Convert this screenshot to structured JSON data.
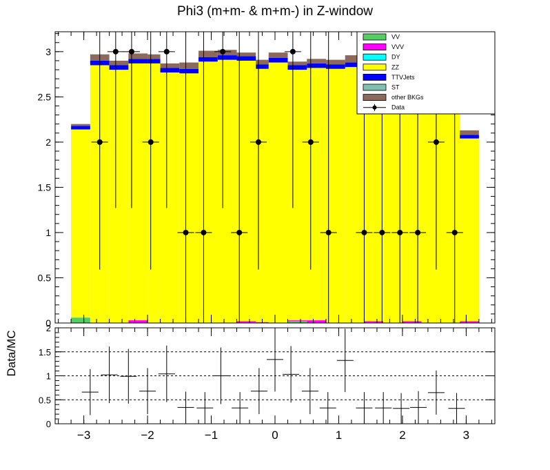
{
  "chart_data": {
    "type": "stacked-histogram-with-ratio",
    "title": "Phi3 (m+m- & m+m-) in Z-window",
    "xlabel": "",
    "ylabel": "",
    "ratio_ylabel": "Data/MC",
    "xlim": [
      -3.45,
      3.45
    ],
    "ylim": [
      0,
      3.22
    ],
    "ratio_ylim": [
      0,
      2
    ],
    "x_ticks": [
      -3,
      -2,
      -1,
      0,
      1,
      2,
      3
    ],
    "x_tick_labels": [
      "−3",
      "−2",
      "−1",
      "0",
      "1",
      "2",
      "3"
    ],
    "y_ticks": [
      0,
      0.5,
      1,
      1.5,
      2,
      2.5,
      3
    ],
    "y_tick_labels": [
      "0",
      "0.5",
      "1",
      "1.5",
      "2",
      "2.5",
      "3"
    ],
    "ratio_y_ticks": [
      0,
      0.5,
      1,
      1.5,
      2
    ],
    "ratio_y_tick_labels": [
      "0",
      "0.5",
      "1",
      "1.5",
      "2"
    ],
    "ratio_gridlines": [
      0.5,
      1,
      1.5
    ],
    "bin_edges": [
      -3.2,
      -2.9,
      -2.6,
      -2.3,
      -2.0,
      -1.8,
      -1.5,
      -1.2,
      -0.9,
      -0.6,
      -0.3,
      -0.1,
      0.2,
      0.5,
      0.8,
      1.1,
      1.4,
      1.7,
      2.0,
      2.3,
      2.6,
      2.9,
      3.2
    ],
    "series": [
      {
        "name": "VV",
        "color": "#55cc66",
        "values": [
          0.06,
          0,
          0,
          0,
          0,
          0,
          0,
          0,
          0,
          0,
          0,
          0,
          0.02,
          0,
          0,
          0,
          0,
          0,
          0,
          0,
          0,
          0
        ]
      },
      {
        "name": "VVV",
        "color": "#ff00ff",
        "values": [
          0,
          0,
          0,
          0.03,
          0,
          0,
          0,
          0,
          0,
          0.02,
          0.01,
          0,
          0.01,
          0.03,
          0,
          0,
          0.02,
          0,
          0.02,
          0,
          0,
          0.02
        ]
      },
      {
        "name": "DY",
        "color": "#00ffff",
        "values": [
          0,
          0,
          0,
          0,
          0,
          0,
          0,
          0,
          0,
          0,
          0,
          0,
          0,
          0,
          0,
          0,
          0,
          0,
          0,
          0,
          0,
          0
        ]
      },
      {
        "name": "ZZ",
        "color": "#ffff00",
        "values": [
          2.08,
          2.85,
          2.8,
          2.84,
          2.87,
          2.77,
          2.76,
          2.89,
          2.91,
          2.88,
          2.8,
          2.88,
          2.77,
          2.79,
          2.81,
          2.83,
          2.82,
          2.84,
          2.89,
          2.86,
          2.84,
          2.02
        ]
      },
      {
        "name": "TTVJets",
        "color": "#0000ff",
        "values": [
          0.04,
          0.05,
          0.05,
          0.05,
          0.05,
          0.05,
          0.05,
          0.05,
          0.05,
          0.05,
          0.05,
          0.05,
          0.05,
          0.05,
          0.05,
          0.05,
          0.05,
          0.05,
          0.05,
          0.05,
          0.05,
          0.04
        ]
      },
      {
        "name": "ST",
        "color": "#80c0b0",
        "values": [
          0,
          0,
          0,
          0,
          0,
          0,
          0,
          0,
          0,
          0,
          0,
          0,
          0,
          0,
          0,
          0,
          0,
          0,
          0,
          0,
          0,
          0
        ]
      },
      {
        "name": "other BKGs",
        "color": "#8b6a5c",
        "values": [
          0.02,
          0.07,
          0.05,
          0.06,
          0.05,
          0.05,
          0.07,
          0.07,
          0.06,
          0.04,
          0.05,
          0.06,
          0.04,
          0.05,
          0.05,
          0.08,
          0.05,
          0.05,
          0.05,
          0.04,
          0.04,
          0.05
        ]
      }
    ],
    "data": {
      "name": "Data",
      "color": "#000000",
      "x": [
        -2.75,
        -2.5,
        -2.25,
        -1.95,
        -1.7,
        -1.4,
        -1.12,
        -0.82,
        -0.56,
        -0.26,
        0.28,
        0.56,
        0.84,
        1.4,
        1.68,
        1.96,
        2.24,
        2.53,
        2.82
      ],
      "y": [
        2,
        3,
        3,
        2,
        3,
        1,
        1,
        3,
        1,
        2,
        3,
        2,
        1,
        1,
        1,
        1,
        1,
        2,
        1
      ],
      "yerr_low": [
        1.41,
        1.73,
        1.73,
        1.41,
        1.73,
        1.0,
        1.0,
        1.73,
        1.0,
        1.41,
        1.73,
        1.41,
        1.0,
        1.0,
        1.0,
        1.0,
        1.0,
        1.41,
        1.0
      ],
      "yerr_high": [
        2.63,
        2.91,
        2.91,
        2.63,
        2.91,
        2.36,
        2.36,
        2.91,
        2.36,
        2.63,
        2.91,
        2.63,
        2.36,
        2.36,
        2.36,
        2.36,
        2.36,
        2.63,
        2.36
      ]
    },
    "ratio": {
      "x": [
        -2.9,
        -2.6,
        -2.3,
        -2.0,
        -1.7,
        -1.4,
        -1.1,
        -0.85,
        -0.55,
        -0.25,
        0.0,
        0.25,
        0.55,
        0.83,
        1.1,
        1.4,
        1.7,
        1.98,
        2.25,
        2.53,
        2.85
      ],
      "y": [
        0.66,
        1.02,
        0.99,
        0.68,
        1.04,
        0.34,
        0.33,
        1.0,
        0.33,
        0.68,
        1.34,
        1.03,
        0.68,
        0.33,
        1.32,
        0.33,
        0.33,
        0.32,
        0.34,
        0.65,
        0.32
      ],
      "yerr_low": [
        0.48,
        0.59,
        0.57,
        0.48,
        0.59,
        0.33,
        0.33,
        0.59,
        0.33,
        0.48,
        0.67,
        0.59,
        0.48,
        0.33,
        0.66,
        0.33,
        0.33,
        0.32,
        0.34,
        0.46,
        0.32
      ],
      "yerr_high": [
        0.48,
        0.59,
        0.57,
        0.48,
        0.59,
        0.33,
        0.33,
        0.59,
        0.33,
        0.48,
        0.67,
        0.59,
        0.48,
        0.33,
        0.66,
        0.33,
        0.33,
        0.32,
        0.34,
        0.46,
        0.32
      ]
    },
    "legend": {
      "placement": "top-right",
      "entries": [
        {
          "label": "VV",
          "color": "#55cc66",
          "kind": "box"
        },
        {
          "label": "VVV",
          "color": "#ff00ff",
          "kind": "box"
        },
        {
          "label": "DY",
          "color": "#00ffff",
          "kind": "box"
        },
        {
          "label": "ZZ",
          "color": "#ffff00",
          "kind": "box"
        },
        {
          "label": "TTVJets",
          "color": "#0000ff",
          "kind": "box"
        },
        {
          "label": "ST",
          "color": "#80c0b0",
          "kind": "box"
        },
        {
          "label": "other BKGs",
          "color": "#8b6a5c",
          "kind": "box"
        },
        {
          "label": "Data",
          "color": "#000000",
          "kind": "marker"
        }
      ]
    }
  }
}
